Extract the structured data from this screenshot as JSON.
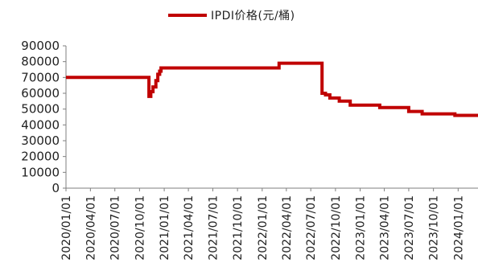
{
  "chart_data": {
    "type": "line",
    "title": "",
    "xlabel": "",
    "ylabel": "",
    "ylim": [
      0,
      90000
    ],
    "yticks": [
      0,
      10000,
      20000,
      30000,
      40000,
      50000,
      60000,
      70000,
      80000,
      90000
    ],
    "xticks": [
      "2020/01/01",
      "2020/04/01",
      "2020/07/01",
      "2020/10/01",
      "2021/01/01",
      "2021/04/01",
      "2021/07/01",
      "2021/10/01",
      "2022/01/01",
      "2022/04/01",
      "2022/07/01",
      "2022/10/01",
      "2023/01/01",
      "2023/04/01",
      "2023/07/01",
      "2023/10/01",
      "2024/01/01"
    ],
    "xlim": [
      "2020/01/01",
      "2024/03/15"
    ],
    "grid": false,
    "legend_position": "top-center",
    "series": [
      {
        "name": "IPDI价格(元/桶)",
        "color": "#c00000",
        "step": true,
        "points": [
          [
            "2020/01/01",
            70000
          ],
          [
            "2020/11/01",
            70000
          ],
          [
            "2020/11/05",
            58000
          ],
          [
            "2020/11/12",
            61000
          ],
          [
            "2020/11/20",
            64000
          ],
          [
            "2020/12/01",
            68000
          ],
          [
            "2020/12/08",
            72000
          ],
          [
            "2020/12/15",
            74000
          ],
          [
            "2020/12/20",
            76000
          ],
          [
            "2022/03/01",
            76000
          ],
          [
            "2022/03/05",
            79000
          ],
          [
            "2022/08/08",
            79000
          ],
          [
            "2022/08/12",
            60000
          ],
          [
            "2022/08/25",
            59000
          ],
          [
            "2022/09/10",
            57000
          ],
          [
            "2022/10/15",
            55000
          ],
          [
            "2022/11/25",
            52500
          ],
          [
            "2023/03/15",
            51000
          ],
          [
            "2023/07/01",
            48500
          ],
          [
            "2023/08/20",
            47000
          ],
          [
            "2023/12/20",
            46000
          ],
          [
            "2024/03/15",
            46000
          ]
        ]
      }
    ]
  }
}
